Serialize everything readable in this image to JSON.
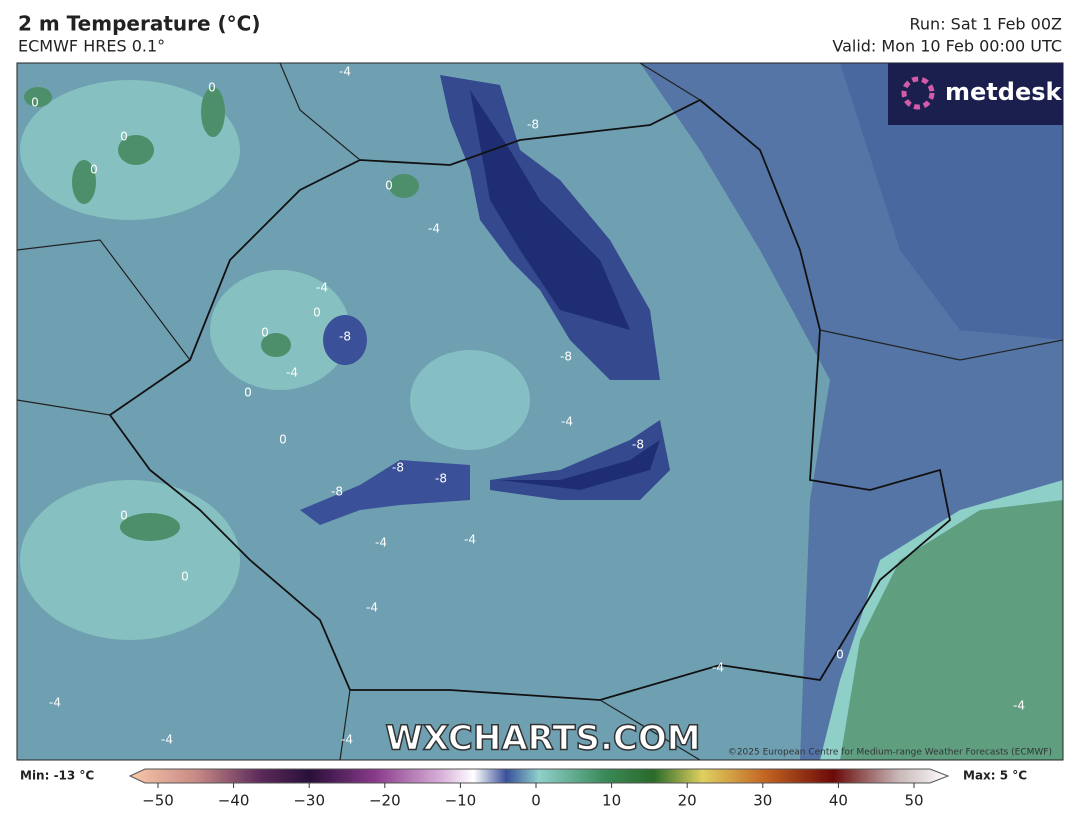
{
  "header": {
    "title": "2 m Temperature (°C)",
    "subtitle": "ECMWF HRES 0.1°",
    "run": "Run: Sat 1 Feb 00Z",
    "valid": "Valid: Mon 10 Feb 00:00 UTC"
  },
  "logo": "metdesk",
  "watermark": "WXCHARTS.COM",
  "copyright": "©2025 European Centre for Medium-range Weather Forecasts (ECMWF)",
  "contour_labels": [
    "0",
    "0",
    "0",
    "0",
    "0",
    "-4",
    "-8",
    "-4",
    "0",
    "0",
    "-8",
    "-4",
    "0",
    "-8",
    "-4",
    "0",
    "-8",
    "-8",
    "-8",
    "-8",
    "0",
    "0",
    "-4",
    "-4",
    "-4",
    "-4",
    "0",
    "-4",
    "-4",
    "-4",
    "-4",
    "-4"
  ],
  "colorbar": {
    "min": "Min: -13 °C",
    "max": "Max: 5 °C",
    "ticks": [
      "−50",
      "−40",
      "−30",
      "−20",
      "−10",
      "0",
      "10",
      "20",
      "30",
      "40",
      "50"
    ]
  }
}
